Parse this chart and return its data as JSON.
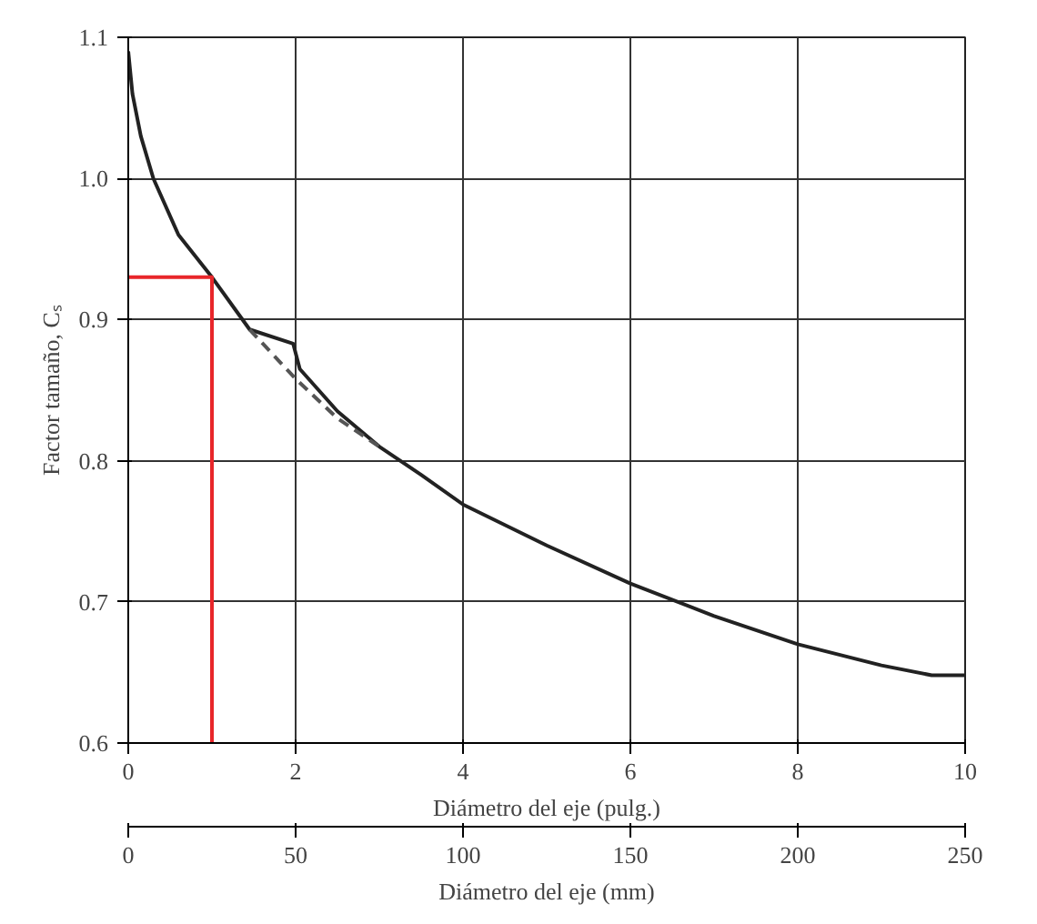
{
  "chart_data": {
    "type": "line",
    "xlabel": "Diámetro del eje (pulg.)",
    "ylabel": "Factor tamaño, Cₛ",
    "x2label": "Diámetro del eje (mm)",
    "xlim": [
      0,
      10
    ],
    "xticks": [
      0,
      2,
      4,
      6,
      8,
      10
    ],
    "ylim": [
      0.6,
      1.1
    ],
    "yticks": [
      0.6,
      0.7,
      0.8,
      0.9,
      {
        "value": 1.0,
        "label": "1.0"
      },
      1.1
    ],
    "x2lim": [
      0,
      250
    ],
    "x2ticks": [
      0,
      50,
      100,
      150,
      200,
      250
    ],
    "grid": true,
    "marker": "none",
    "series": [
      {
        "color": "#222222",
        "line_style": "solid",
        "x": [
          0,
          0.05,
          0.15,
          0.3,
          0.6,
          1,
          1.45,
          1.97,
          2.05,
          2.5,
          3,
          3.5,
          4,
          5,
          6,
          7,
          8,
          9,
          9.6,
          10
        ],
        "values": [
          1.09,
          1.06,
          1.03,
          1.0,
          0.96,
          0.93,
          0.893,
          0.883,
          0.865,
          0.835,
          0.81,
          0.79,
          0.769,
          0.74,
          0.713,
          0.69,
          0.67,
          0.655,
          0.648,
          0.648
        ]
      },
      {
        "color": "#555555",
        "line_style": "dashed",
        "x": [
          1.45,
          2,
          2.5,
          3
        ],
        "values": [
          0.893,
          0.858,
          0.83,
          0.81
        ]
      },
      {
        "color": "#e8262a",
        "line_style": "solid",
        "x": [
          0,
          1,
          1
        ],
        "values": [
          0.93,
          0.93,
          0.6
        ]
      }
    ]
  }
}
